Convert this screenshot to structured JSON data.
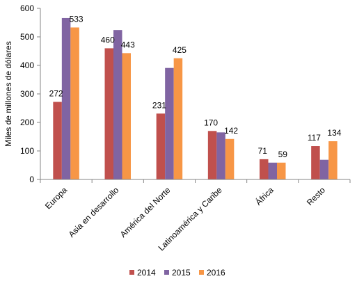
{
  "chart_data": {
    "type": "bar",
    "title": "",
    "xlabel": "",
    "ylabel": "Miles de millones de dólares",
    "ylim": [
      0,
      600
    ],
    "yticks": [
      0,
      100,
      200,
      300,
      400,
      500,
      600
    ],
    "grid": false,
    "legend_position": "bottom",
    "categories": [
      "Europa",
      "Asia en desarrollo",
      "América del Norte",
      "Latinoamérica y Caribe",
      "África",
      "Resto"
    ],
    "series": [
      {
        "name": "2014",
        "color": "#c0504d",
        "values": [
          272,
          460,
          231,
          170,
          71,
          117
        ]
      },
      {
        "name": "2015",
        "color": "#8064a2",
        "values": [
          566,
          524,
          391,
          165,
          59,
          69
        ]
      },
      {
        "name": "2016",
        "color": "#f79646",
        "values": [
          533,
          443,
          425,
          142,
          59,
          134
        ]
      }
    ],
    "data_labels": [
      {
        "category": 0,
        "series": 0,
        "text": "272"
      },
      {
        "category": 0,
        "series": 2,
        "text": "533"
      },
      {
        "category": 1,
        "series": 0,
        "text": "460"
      },
      {
        "category": 1,
        "series": 2,
        "text": "443"
      },
      {
        "category": 2,
        "series": 0,
        "text": "231"
      },
      {
        "category": 2,
        "series": 2,
        "text": "425"
      },
      {
        "category": 3,
        "series": 0,
        "text": "170"
      },
      {
        "category": 3,
        "series": 2,
        "text": "142"
      },
      {
        "category": 4,
        "series": 0,
        "text": "71"
      },
      {
        "category": 4,
        "series": 2,
        "text": "59"
      },
      {
        "category": 5,
        "series": 0,
        "text": "117"
      },
      {
        "category": 5,
        "series": 2,
        "text": "134"
      }
    ]
  }
}
